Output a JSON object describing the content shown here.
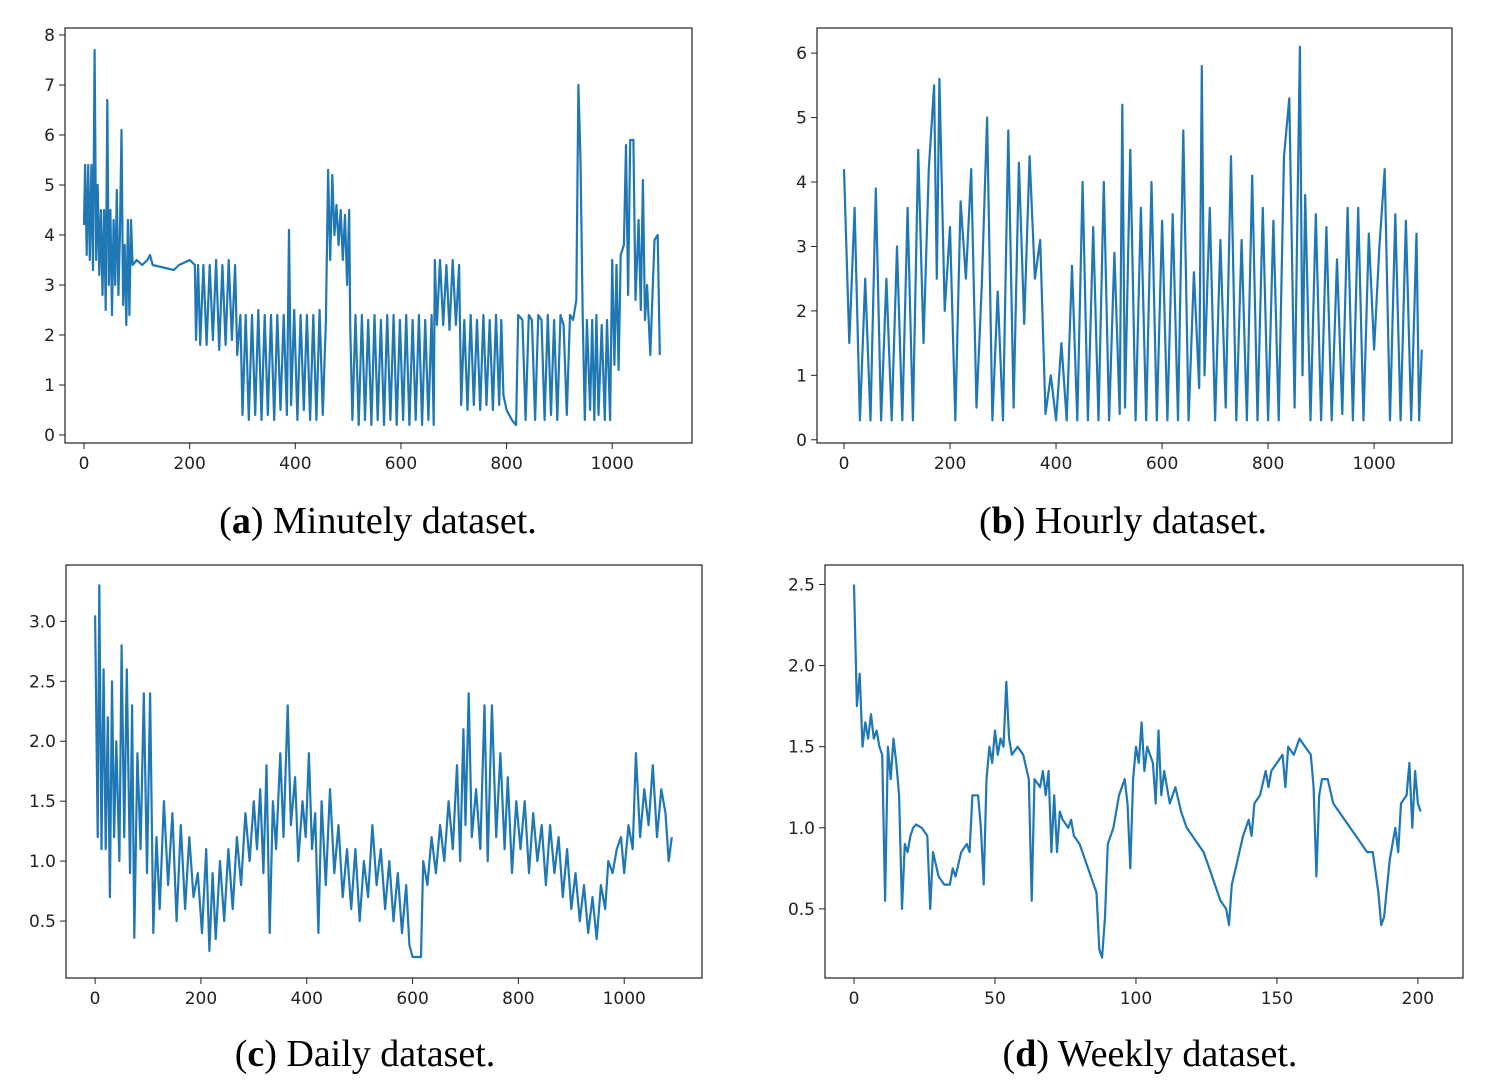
{
  "chart_data": [
    {
      "type": "line",
      "caption": [
        "(",
        "a",
        ") Minutely dataset."
      ],
      "color": "#1f77b4",
      "xlim": [
        -36,
        1151
      ],
      "ylim": [
        -0.16,
        8.14
      ],
      "xticks": [
        0,
        200,
        400,
        600,
        800,
        1000
      ],
      "yticks": [
        0,
        1,
        2,
        3,
        4,
        5,
        6,
        7,
        8
      ],
      "x": [
        0,
        2,
        5,
        8,
        11,
        14,
        17,
        20,
        23,
        26,
        29,
        32,
        35,
        38,
        41,
        44,
        47,
        50,
        53,
        56,
        59,
        62,
        65,
        68,
        71,
        74,
        77,
        80,
        83,
        86,
        89,
        92,
        100,
        110,
        120,
        125,
        130,
        150,
        170,
        180,
        200,
        210,
        212,
        216,
        220,
        226,
        232,
        238,
        244,
        250,
        256,
        262,
        268,
        274,
        280,
        286,
        290,
        296,
        300,
        306,
        312,
        318,
        324,
        330,
        336,
        342,
        348,
        354,
        360,
        366,
        372,
        378,
        384,
        388,
        392,
        398,
        404,
        410,
        416,
        422,
        428,
        434,
        440,
        446,
        452,
        458,
        462,
        466,
        470,
        474,
        478,
        482,
        486,
        490,
        494,
        498,
        502,
        504,
        508,
        514,
        520,
        526,
        532,
        538,
        544,
        550,
        556,
        562,
        568,
        574,
        580,
        586,
        592,
        598,
        604,
        610,
        616,
        622,
        628,
        634,
        640,
        646,
        652,
        658,
        662,
        664,
        668,
        674,
        680,
        686,
        692,
        698,
        704,
        710,
        714,
        720,
        726,
        732,
        738,
        744,
        750,
        756,
        762,
        768,
        774,
        780,
        786,
        790,
        794,
        800,
        810,
        818,
        822,
        830,
        836,
        842,
        848,
        854,
        860,
        866,
        872,
        878,
        884,
        890,
        896,
        902,
        908,
        914,
        920,
        926,
        932,
        936,
        940,
        944,
        948,
        952,
        958,
        962,
        966,
        970,
        974,
        980,
        986,
        990,
        996,
        1000,
        1004,
        1008,
        1012,
        1016,
        1022,
        1026,
        1030,
        1034,
        1040,
        1044,
        1050,
        1054,
        1058,
        1062,
        1066,
        1072,
        1080,
        1086,
        1090
      ],
      "values": [
        4.2,
        5.4,
        3.6,
        5.4,
        3.5,
        5.4,
        3.3,
        7.7,
        3.5,
        5.0,
        3.2,
        4.5,
        2.8,
        4.5,
        2.5,
        6.7,
        3.0,
        4.5,
        2.4,
        4.3,
        3.0,
        4.9,
        2.8,
        4.0,
        6.1,
        2.6,
        3.8,
        2.2,
        4.3,
        2.4,
        4.3,
        3.4,
        3.5,
        3.4,
        3.5,
        3.6,
        3.4,
        3.35,
        3.3,
        3.4,
        3.5,
        3.4,
        1.9,
        3.4,
        1.8,
        3.4,
        1.8,
        3.4,
        1.9,
        3.5,
        1.7,
        3.4,
        1.8,
        3.5,
        1.9,
        3.4,
        1.6,
        2.4,
        0.4,
        2.4,
        0.3,
        2.4,
        0.4,
        2.5,
        0.3,
        2.4,
        0.4,
        2.4,
        0.3,
        2.4,
        0.5,
        2.4,
        0.4,
        4.1,
        0.6,
        2.5,
        0.3,
        2.4,
        0.5,
        2.4,
        0.3,
        2.4,
        0.3,
        2.5,
        0.4,
        2.3,
        5.3,
        3.5,
        5.2,
        4.0,
        4.6,
        3.8,
        4.5,
        3.5,
        4.4,
        3.0,
        4.5,
        2.2,
        0.3,
        2.4,
        0.2,
        2.4,
        0.3,
        2.3,
        0.2,
        2.4,
        0.3,
        2.3,
        0.2,
        2.4,
        0.3,
        2.4,
        0.2,
        2.3,
        0.3,
        2.4,
        0.2,
        2.3,
        0.3,
        2.4,
        0.2,
        2.3,
        0.3,
        2.4,
        0.2,
        3.5,
        2.2,
        3.5,
        2.2,
        3.4,
        2.1,
        3.5,
        2.2,
        3.4,
        0.6,
        2.3,
        0.5,
        2.4,
        0.6,
        2.3,
        0.5,
        2.4,
        0.6,
        2.3,
        0.5,
        2.4,
        0.6,
        2.3,
        0.8,
        0.5,
        0.3,
        0.2,
        2.4,
        2.3,
        0.3,
        2.4,
        2.3,
        0.3,
        2.4,
        2.3,
        0.3,
        2.4,
        0.4,
        2.3,
        0.3,
        2.4,
        2.2,
        0.4,
        2.4,
        2.3,
        2.7,
        7.0,
        5.5,
        2.4,
        0.3,
        2.3,
        0.5,
        2.3,
        0.3,
        2.4,
        0.4,
        2.2,
        0.3,
        2.3,
        0.3,
        3.5,
        1.4,
        3.4,
        1.3,
        3.6,
        3.8,
        5.8,
        2.8,
        5.9,
        5.9,
        2.7,
        4.3,
        2.5,
        5.1,
        2.3,
        3.0,
        1.6,
        3.9,
        4.0,
        1.6
      ]
    },
    {
      "type": "line",
      "caption": [
        "(",
        "b",
        ") Hourly dataset."
      ],
      "color": "#1f77b4",
      "xlim": [
        -51,
        1147
      ],
      "ylim": [
        -0.05,
        6.39
      ],
      "xticks": [
        0,
        200,
        400,
        600,
        800,
        1000
      ],
      "yticks": [
        0,
        1,
        2,
        3,
        4,
        5,
        6
      ],
      "x": [
        0,
        10,
        20,
        30,
        40,
        50,
        60,
        70,
        80,
        90,
        100,
        110,
        120,
        130,
        140,
        150,
        160,
        170,
        175,
        180,
        190,
        200,
        210,
        220,
        230,
        240,
        250,
        260,
        270,
        280,
        290,
        300,
        310,
        320,
        330,
        340,
        350,
        360,
        370,
        380,
        390,
        400,
        410,
        420,
        430,
        440,
        450,
        460,
        470,
        480,
        490,
        500,
        510,
        520,
        525,
        530,
        540,
        550,
        560,
        570,
        580,
        590,
        600,
        610,
        620,
        630,
        640,
        650,
        660,
        670,
        675,
        680,
        690,
        700,
        710,
        720,
        730,
        740,
        750,
        760,
        770,
        780,
        790,
        800,
        810,
        820,
        830,
        840,
        850,
        860,
        865,
        870,
        880,
        890,
        900,
        910,
        920,
        930,
        940,
        950,
        960,
        970,
        980,
        990,
        1000,
        1010,
        1020,
        1030,
        1040,
        1050,
        1060,
        1070,
        1080,
        1085,
        1090
      ],
      "values": [
        4.2,
        1.5,
        3.6,
        0.3,
        2.5,
        0.3,
        3.9,
        0.3,
        2.5,
        0.3,
        3.0,
        0.3,
        3.6,
        0.3,
        4.5,
        1.5,
        4.2,
        5.5,
        2.5,
        5.6,
        2.0,
        3.3,
        0.3,
        3.7,
        2.5,
        4.2,
        0.5,
        2.4,
        5.0,
        0.3,
        2.3,
        0.3,
        4.8,
        0.5,
        4.3,
        1.8,
        4.4,
        2.5,
        3.1,
        0.4,
        1.0,
        0.3,
        1.5,
        0.3,
        2.7,
        0.3,
        4.0,
        0.3,
        3.3,
        0.3,
        4.0,
        0.3,
        2.9,
        0.4,
        5.2,
        0.5,
        4.5,
        0.3,
        3.6,
        0.3,
        4.0,
        0.3,
        3.4,
        0.3,
        3.5,
        0.3,
        4.8,
        0.3,
        2.6,
        0.8,
        5.8,
        1.0,
        3.6,
        0.3,
        3.1,
        0.5,
        4.4,
        0.3,
        3.1,
        0.3,
        4.1,
        0.3,
        3.6,
        0.3,
        3.4,
        0.3,
        4.4,
        5.3,
        0.5,
        6.1,
        1.0,
        3.8,
        0.3,
        3.5,
        0.3,
        3.3,
        0.3,
        2.8,
        0.4,
        3.6,
        0.3,
        3.6,
        0.3,
        3.2,
        1.4,
        3.0,
        4.2,
        0.3,
        3.5,
        0.3,
        3.4,
        0.3,
        3.2,
        0.3,
        1.4
      ]
    },
    {
      "type": "line",
      "caption": [
        "(",
        "c",
        ") Daily dataset."
      ],
      "color": "#1f77b4",
      "xlim": [
        -55,
        1147
      ],
      "ylim": [
        0.025,
        3.47
      ],
      "xticks": [
        0,
        200,
        400,
        600,
        800,
        1000
      ],
      "yticks": [
        0.5,
        {
          "value": 1,
          "label": "1.0"
        },
        1.5,
        {
          "value": 2,
          "label": "2.0"
        },
        2.5,
        {
          "value": 3,
          "label": "3.0"
        }
      ],
      "x": [
        0,
        5,
        8,
        12,
        16,
        20,
        24,
        28,
        32,
        36,
        40,
        46,
        50,
        55,
        60,
        66,
        70,
        74,
        80,
        86,
        92,
        98,
        104,
        110,
        116,
        122,
        130,
        138,
        146,
        154,
        162,
        170,
        178,
        186,
        194,
        202,
        210,
        216,
        222,
        228,
        236,
        244,
        252,
        260,
        268,
        276,
        284,
        292,
        300,
        306,
        312,
        318,
        324,
        330,
        336,
        342,
        350,
        356,
        364,
        370,
        378,
        384,
        392,
        398,
        404,
        410,
        416,
        422,
        428,
        436,
        444,
        452,
        460,
        468,
        476,
        484,
        492,
        500,
        508,
        516,
        524,
        532,
        540,
        548,
        556,
        564,
        572,
        580,
        588,
        594,
        600,
        608,
        616,
        620,
        628,
        636,
        644,
        652,
        660,
        668,
        676,
        684,
        690,
        696,
        700,
        706,
        712,
        720,
        728,
        736,
        742,
        750,
        758,
        766,
        774,
        780,
        788,
        796,
        804,
        812,
        820,
        828,
        836,
        844,
        852,
        860,
        868,
        876,
        884,
        892,
        900,
        908,
        916,
        924,
        932,
        940,
        948,
        956,
        964,
        970,
        978,
        986,
        994,
        1000,
        1008,
        1016,
        1022,
        1030,
        1038,
        1046,
        1054,
        1062,
        1070,
        1078,
        1084,
        1090
      ],
      "values": [
        3.05,
        1.2,
        3.3,
        1.1,
        2.6,
        1.1,
        2.2,
        0.7,
        2.5,
        1.2,
        2.0,
        1.0,
        2.8,
        1.2,
        2.6,
        0.9,
        2.3,
        0.36,
        1.9,
        1.1,
        2.4,
        0.9,
        2.4,
        0.4,
        1.2,
        0.6,
        1.5,
        0.8,
        1.4,
        0.5,
        1.3,
        0.6,
        1.2,
        0.7,
        0.9,
        0.4,
        1.1,
        0.25,
        0.9,
        0.35,
        1.0,
        0.5,
        1.1,
        0.6,
        1.2,
        0.8,
        1.4,
        1.0,
        1.5,
        1.1,
        1.6,
        0.9,
        1.8,
        0.4,
        1.5,
        1.1,
        1.9,
        1.2,
        2.3,
        1.3,
        1.7,
        1.0,
        1.5,
        1.2,
        1.9,
        1.1,
        1.4,
        0.4,
        1.5,
        0.8,
        1.6,
        0.9,
        1.3,
        0.7,
        1.1,
        0.6,
        1.1,
        0.5,
        1.0,
        0.7,
        1.3,
        0.8,
        1.1,
        0.6,
        1.0,
        0.5,
        0.9,
        0.4,
        0.8,
        0.3,
        0.2,
        0.2,
        0.2,
        1.0,
        0.8,
        1.2,
        0.9,
        1.3,
        1.0,
        1.5,
        1.1,
        1.8,
        1.0,
        2.1,
        1.3,
        2.4,
        1.2,
        1.6,
        1.1,
        2.3,
        1.0,
        2.3,
        1.2,
        1.9,
        1.1,
        1.7,
        0.9,
        1.5,
        1.1,
        1.5,
        0.9,
        1.4,
        1.0,
        1.3,
        0.8,
        1.3,
        0.9,
        1.2,
        0.7,
        1.1,
        0.6,
        0.9,
        0.5,
        0.8,
        0.4,
        0.7,
        0.35,
        0.8,
        0.6,
        1.0,
        0.9,
        1.1,
        1.2,
        0.9,
        1.3,
        1.1,
        1.9,
        1.2,
        1.6,
        1.3,
        1.8,
        1.2,
        1.6,
        1.4,
        1.0,
        1.2
      ]
    },
    {
      "type": "line",
      "caption": [
        "(",
        "d",
        ") Weekly dataset."
      ],
      "color": "#1f77b4",
      "xlim": [
        -10.3,
        216
      ],
      "ylim": [
        0.074,
        2.62
      ],
      "xticks": [
        0,
        50,
        100,
        150,
        200
      ],
      "yticks": [
        0.5,
        {
          "value": 1,
          "label": "1.0"
        },
        1.5,
        {
          "value": 2,
          "label": "2.0"
        },
        2.5
      ],
      "x": [
        0,
        1,
        2,
        3,
        4,
        5,
        6,
        7,
        8,
        9,
        10,
        11,
        12,
        13,
        14,
        15,
        16,
        17,
        18,
        19,
        20,
        21,
        22,
        24,
        26,
        27,
        28,
        30,
        32,
        34,
        35,
        36,
        38,
        40,
        41,
        42,
        44,
        45,
        46,
        47,
        48,
        49,
        50,
        51,
        52,
        53,
        54,
        55,
        56,
        58,
        60,
        62,
        63,
        64,
        66,
        67,
        68,
        69,
        70,
        71,
        72,
        73,
        74,
        76,
        77,
        78,
        80,
        82,
        84,
        86,
        87,
        88,
        89,
        90,
        92,
        94,
        96,
        97,
        98,
        99,
        100,
        101,
        102,
        103,
        104,
        106,
        107,
        108,
        109,
        110,
        112,
        114,
        116,
        118,
        120,
        122,
        124,
        126,
        128,
        130,
        132,
        133,
        134,
        136,
        138,
        140,
        141,
        142,
        144,
        146,
        147,
        148,
        150,
        152,
        153,
        154,
        156,
        158,
        160,
        162,
        163,
        164,
        165,
        166,
        168,
        170,
        172,
        174,
        176,
        178,
        180,
        182,
        184,
        186,
        187,
        188,
        190,
        192,
        193,
        194,
        196,
        197,
        198,
        199,
        200,
        201
      ],
      "values": [
        2.5,
        1.75,
        1.95,
        1.5,
        1.65,
        1.55,
        1.7,
        1.55,
        1.6,
        1.5,
        1.45,
        0.55,
        1.5,
        1.3,
        1.55,
        1.4,
        1.2,
        0.5,
        0.9,
        0.85,
        0.95,
        1.0,
        1.02,
        1.0,
        0.95,
        0.5,
        0.85,
        0.7,
        0.65,
        0.65,
        0.75,
        0.7,
        0.85,
        0.9,
        0.85,
        1.2,
        1.2,
        1.0,
        0.65,
        1.3,
        1.5,
        1.4,
        1.6,
        1.45,
        1.55,
        1.5,
        1.9,
        1.55,
        1.45,
        1.5,
        1.45,
        1.3,
        0.55,
        1.3,
        1.25,
        1.35,
        1.2,
        1.35,
        0.85,
        1.2,
        0.85,
        1.1,
        1.05,
        1.0,
        1.05,
        0.95,
        0.9,
        0.8,
        0.7,
        0.6,
        0.25,
        0.2,
        0.45,
        0.9,
        1.0,
        1.2,
        1.3,
        1.15,
        0.75,
        1.3,
        1.5,
        1.4,
        1.65,
        1.35,
        1.5,
        1.4,
        1.15,
        1.6,
        1.2,
        1.35,
        1.15,
        1.25,
        1.1,
        1.0,
        0.95,
        0.9,
        0.85,
        0.75,
        0.65,
        0.55,
        0.5,
        0.4,
        0.65,
        0.8,
        0.95,
        1.05,
        0.95,
        1.15,
        1.2,
        1.35,
        1.25,
        1.35,
        1.4,
        1.45,
        1.25,
        1.5,
        1.45,
        1.55,
        1.5,
        1.45,
        1.25,
        0.7,
        1.2,
        1.3,
        1.3,
        1.15,
        1.1,
        1.05,
        1.0,
        0.95,
        0.9,
        0.85,
        0.85,
        0.6,
        0.4,
        0.45,
        0.8,
        1.0,
        0.85,
        1.15,
        1.2,
        1.4,
        1.0,
        1.35,
        1.15,
        1.1
      ]
    }
  ]
}
